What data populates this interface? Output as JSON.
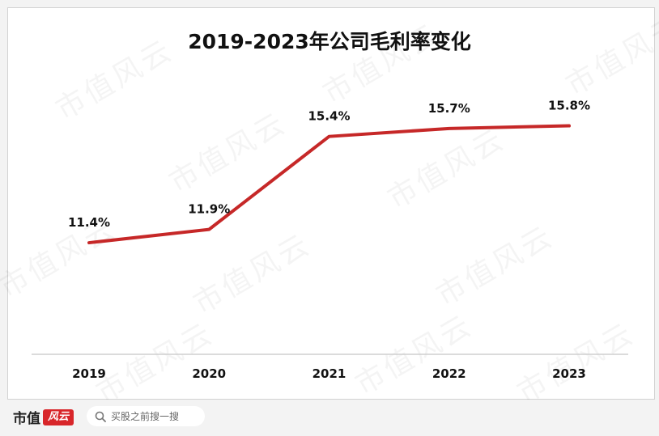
{
  "chart_data": {
    "type": "line",
    "title": "2019-2023年公司毛利率变化",
    "categories": [
      "2019",
      "2020",
      "2021",
      "2022",
      "2023"
    ],
    "series": [
      {
        "values": [
          11.4,
          11.9,
          15.4,
          15.7,
          15.8
        ],
        "labels": [
          "11.4%",
          "11.9%",
          "15.4%",
          "15.7%",
          "15.8%"
        ],
        "color": "#c62828"
      }
    ],
    "ylim": [
      7.2,
      17.4
    ],
    "grid": false,
    "legend": "none"
  },
  "watermark": "市值风云",
  "footer": {
    "brand_text": "市值",
    "brand_mark": "风云",
    "search_icon": "search-icon",
    "search_placeholder": "买股之前搜一搜"
  }
}
